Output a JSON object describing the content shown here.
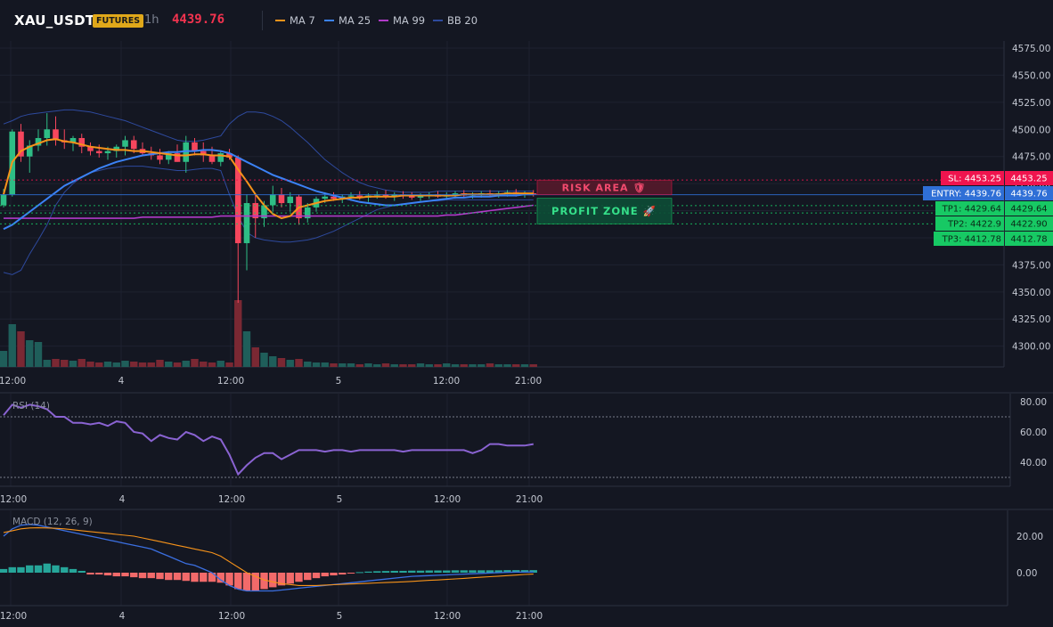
{
  "header": {
    "symbol": "XAU_USDT",
    "badge": "FUTURES",
    "interval": "1h",
    "price": "4439.76",
    "indicators": [
      {
        "label": "MA 7",
        "color": "#f7931a"
      },
      {
        "label": "MA 25",
        "color": "#3b82f6"
      },
      {
        "label": "MA 99",
        "color": "#b03ac8"
      },
      {
        "label": "BB 20",
        "color": "#2e4a9e"
      }
    ]
  },
  "zones": {
    "risk_label": "RISK AREA 🛡",
    "profit_label": "PROFIT ZONE 🚀"
  },
  "price_tags": [
    {
      "text": "SL: 4453.25",
      "value_text": "4453.25",
      "value": 4453.25,
      "kind": "sl"
    },
    {
      "text": "ENTRY: 4439.76",
      "value_text": "4439.76",
      "value": 4439.76,
      "kind": "entry"
    },
    {
      "text": "TP1: 4429.64",
      "value_text": "4429.64",
      "value": 4429.64,
      "kind": "tp"
    },
    {
      "text": "TP2: 4422.9",
      "value_text": "4422.90",
      "value": 4422.9,
      "kind": "tp"
    },
    {
      "text": "TP3: 4412.78",
      "value_text": "4412.78",
      "value": 4412.78,
      "kind": "tp"
    }
  ],
  "colors": {
    "up": "#26a69a",
    "up_candle": "#2ebd85",
    "down": "#f6465d",
    "sl": "#f0144e",
    "entry": "#2f6fd6",
    "tp": "#17c964",
    "rsi": "#8a63d2",
    "macd": "#3b6fe0",
    "signal": "#f7931a"
  },
  "chart_data": [
    {
      "type": "candlestick",
      "title": "XAU_USDT 1h",
      "x_ticks": [
        "12:00",
        "4",
        "12:00",
        "5",
        "12:00",
        "21:00"
      ],
      "y_ticks": [
        "4575.00",
        "4550.00",
        "4525.00",
        "4500.00",
        "4475.00",
        "4450.00",
        "4425.00",
        "4400.00",
        "4375.00",
        "4350.00",
        "4325.00",
        "4300.00"
      ],
      "ylim": [
        4280,
        4575
      ],
      "ohlc": [
        [
          4430,
          4445,
          4428,
          4440
        ],
        [
          4440,
          4500,
          4438,
          4498
        ],
        [
          4498,
          4505,
          4470,
          4475
        ],
        [
          4475,
          4490,
          4460,
          4485
        ],
        [
          4485,
          4500,
          4480,
          4492
        ],
        [
          4492,
          4515,
          4485,
          4500
        ],
        [
          4500,
          4512,
          4485,
          4490
        ],
        [
          4490,
          4500,
          4482,
          4488
        ],
        [
          4488,
          4494,
          4480,
          4492
        ],
        [
          4492,
          4496,
          4478,
          4484
        ],
        [
          4484,
          4488,
          4476,
          4480
        ],
        [
          4480,
          4486,
          4474,
          4478
        ],
        [
          4478,
          4484,
          4472,
          4480
        ],
        [
          4480,
          4486,
          4474,
          4484
        ],
        [
          4484,
          4494,
          4476,
          4490
        ],
        [
          4490,
          4494,
          4478,
          4482
        ],
        [
          4482,
          4488,
          4476,
          4478
        ],
        [
          4478,
          4484,
          4472,
          4476
        ],
        [
          4476,
          4482,
          4468,
          4472
        ],
        [
          4472,
          4480,
          4468,
          4478
        ],
        [
          4478,
          4486,
          4470,
          4470
        ],
        [
          4470,
          4494,
          4460,
          4488
        ],
        [
          4488,
          4492,
          4476,
          4480
        ],
        [
          4480,
          4488,
          4470,
          4476
        ],
        [
          4476,
          4484,
          4468,
          4470
        ],
        [
          4470,
          4480,
          4466,
          4478
        ],
        [
          4478,
          4482,
          4472,
          4474
        ],
        [
          4474,
          4476,
          4340,
          4395
        ],
        [
          4395,
          4440,
          4370,
          4432
        ],
        [
          4432,
          4440,
          4400,
          4418
        ],
        [
          4418,
          4434,
          4410,
          4430
        ],
        [
          4430,
          4448,
          4424,
          4440
        ],
        [
          4440,
          4446,
          4428,
          4432
        ],
        [
          4432,
          4442,
          4424,
          4438
        ],
        [
          4438,
          4440,
          4412,
          4418
        ],
        [
          4418,
          4432,
          4414,
          4428
        ],
        [
          4428,
          4438,
          4424,
          4436
        ],
        [
          4436,
          4442,
          4432,
          4438
        ],
        [
          4438,
          4442,
          4434,
          4436
        ],
        [
          4436,
          4440,
          4432,
          4438
        ],
        [
          4438,
          4442,
          4434,
          4439
        ],
        [
          4439,
          4443,
          4435,
          4437
        ],
        [
          4437,
          4441,
          4433,
          4439
        ],
        [
          4439,
          4443,
          4436,
          4440
        ],
        [
          4440,
          4444,
          4436,
          4438
        ],
        [
          4438,
          4442,
          4434,
          4440
        ],
        [
          4440,
          4443,
          4436,
          4439
        ],
        [
          4439,
          4442,
          4435,
          4437
        ],
        [
          4437,
          4441,
          4434,
          4439
        ],
        [
          4439,
          4442,
          4436,
          4440
        ],
        [
          4440,
          4443,
          4437,
          4438
        ],
        [
          4438,
          4442,
          4435,
          4439
        ],
        [
          4439,
          4443,
          4436,
          4441
        ],
        [
          4441,
          4444,
          4437,
          4439
        ],
        [
          4439,
          4442,
          4436,
          4440
        ],
        [
          4440,
          4443,
          4437,
          4441
        ],
        [
          4441,
          4444,
          4438,
          4440
        ],
        [
          4440,
          4443,
          4437,
          4441
        ],
        [
          4441,
          4444,
          4438,
          4442
        ],
        [
          4442,
          4445,
          4438,
          4440
        ],
        [
          4440,
          4443,
          4437,
          4441
        ],
        [
          4441,
          4444,
          4438,
          4440
        ]
      ],
      "volume": [
        18,
        48,
        40,
        30,
        28,
        8,
        9,
        8,
        7,
        9,
        6,
        5,
        6,
        5,
        7,
        6,
        5,
        5,
        8,
        6,
        5,
        7,
        9,
        6,
        5,
        7,
        5,
        75,
        40,
        22,
        16,
        12,
        10,
        8,
        9,
        6,
        5,
        5,
        4,
        4,
        4,
        3,
        4,
        3,
        4,
        3,
        3,
        3,
        4,
        3,
        3,
        4,
        3,
        3,
        3,
        3,
        4,
        3,
        3,
        3,
        3,
        3
      ],
      "ma7": [
        4440,
        4470,
        4480,
        4484,
        4487,
        4490,
        4491,
        4489,
        4488,
        4486,
        4484,
        4483,
        4482,
        4481,
        4481,
        4480,
        4480,
        4479,
        4478,
        4477,
        4476,
        4476,
        4477,
        4477,
        4476,
        4476,
        4475,
        4463,
        4452,
        4440,
        4430,
        4422,
        4418,
        4420,
        4428,
        4430,
        4432,
        4434,
        4435,
        4436,
        4437,
        4437,
        4438,
        4438,
        4438,
        4438,
        4439,
        4439,
        4439,
        4439,
        4439,
        4439,
        4439,
        4440,
        4440,
        4440,
        4440,
        4440,
        4441,
        4441,
        4441,
        4441
      ],
      "ma25": [
        4408,
        4412,
        4418,
        4424,
        4430,
        4436,
        4442,
        4448,
        4452,
        4456,
        4460,
        4464,
        4467,
        4470,
        4472,
        4474,
        4476,
        4477,
        4478,
        4479,
        4479,
        4480,
        4480,
        4481,
        4481,
        4480,
        4478,
        4474,
        4470,
        4466,
        4462,
        4458,
        4455,
        4452,
        4449,
        4446,
        4443,
        4441,
        4439,
        4437,
        4435,
        4433,
        4432,
        4431,
        4430,
        4430,
        4431,
        4432,
        4433,
        4434,
        4435,
        4436,
        4437,
        4437,
        4438,
        4438,
        4438,
        4439,
        4439,
        4439,
        4440,
        4440
      ],
      "ma99": [
        4418,
        4418,
        4418,
        4418,
        4418,
        4418,
        4418,
        4418,
        4418,
        4418,
        4418,
        4418,
        4418,
        4418,
        4418,
        4418,
        4419,
        4419,
        4419,
        4419,
        4419,
        4419,
        4419,
        4419,
        4419,
        4420,
        4420,
        4420,
        4420,
        4420,
        4420,
        4420,
        4420,
        4420,
        4420,
        4420,
        4420,
        4420,
        4420,
        4420,
        4420,
        4420,
        4420,
        4420,
        4420,
        4420,
        4420,
        4420,
        4420,
        4420,
        4420,
        4421,
        4421,
        4422,
        4423,
        4424,
        4425,
        4426,
        4427,
        4428,
        4429,
        4430
      ],
      "bb_upper": [
        4505,
        4508,
        4512,
        4514,
        4515,
        4516,
        4517,
        4518,
        4518,
        4517,
        4516,
        4514,
        4512,
        4510,
        4508,
        4505,
        4502,
        4499,
        4496,
        4493,
        4490,
        4489,
        4489,
        4490,
        4492,
        4494,
        4505,
        4512,
        4516,
        4516,
        4515,
        4512,
        4508,
        4502,
        4495,
        4488,
        4480,
        4472,
        4466,
        4460,
        4455,
        4451,
        4448,
        4446,
        4444,
        4443,
        4442,
        4442,
        4442,
        4442,
        4443,
        4443,
        4443,
        4443,
        4443,
        4443,
        4443,
        4443,
        4443,
        4443,
        4443,
        4443
      ],
      "bb_lower": [
        4368,
        4366,
        4370,
        4385,
        4398,
        4412,
        4430,
        4442,
        4450,
        4456,
        4460,
        4462,
        4464,
        4465,
        4466,
        4466,
        4466,
        4465,
        4464,
        4463,
        4462,
        4462,
        4463,
        4464,
        4464,
        4462,
        4440,
        4420,
        4405,
        4400,
        4398,
        4397,
        4396,
        4396,
        4397,
        4398,
        4400,
        4403,
        4406,
        4410,
        4414,
        4418,
        4422,
        4426,
        4428,
        4430,
        4431,
        4432,
        4433,
        4434,
        4434,
        4435,
        4435,
        4435,
        4435,
        4435,
        4435,
        4435,
        4435,
        4435,
        4435,
        4435
      ]
    },
    {
      "type": "line",
      "title": "RSI (14)",
      "x_ticks": [
        "12:00",
        "4",
        "12:00",
        "5",
        "12:00",
        "21:00"
      ],
      "y_ticks": [
        "80.00",
        "60.00",
        "40.00"
      ],
      "ylim": [
        25,
        85
      ],
      "levels": [
        70,
        30
      ],
      "values": [
        71,
        78,
        76,
        78,
        77,
        75,
        70,
        70,
        66,
        66,
        65,
        66,
        64,
        67,
        66,
        60,
        59,
        54,
        58,
        56,
        55,
        60,
        58,
        54,
        57,
        55,
        45,
        32,
        38,
        43,
        46,
        46,
        42,
        45,
        48,
        48,
        48,
        47,
        48,
        48,
        47,
        48,
        48,
        48,
        48,
        48,
        47,
        48,
        48,
        48,
        48,
        48,
        48,
        48,
        46,
        48,
        52,
        52,
        51,
        51,
        51,
        52
      ]
    },
    {
      "type": "bar",
      "title": "MACD (12, 26, 9)",
      "x_ticks": [
        "12:00",
        "4",
        "12:00",
        "5",
        "12:00",
        "21:00"
      ],
      "y_ticks": [
        "20.00",
        "0.00"
      ],
      "ylim": [
        -15,
        30
      ],
      "histogram": [
        2,
        3,
        3,
        4,
        4,
        5,
        4,
        3,
        2,
        1,
        -1,
        -1,
        -1.5,
        -2,
        -2,
        -2.5,
        -3,
        -3,
        -3.5,
        -4,
        -4,
        -4.5,
        -5,
        -5,
        -5,
        -5.5,
        -7,
        -9,
        -10,
        -10,
        -9,
        -8,
        -7,
        -6,
        -5,
        -4,
        -3,
        -2,
        -1.5,
        -1,
        -0.5,
        0.3,
        0.6,
        0.8,
        0.9,
        1,
        1,
        1.1,
        1.1,
        1.2,
        1.2,
        1.2,
        1.3,
        1.3,
        1.3,
        1.3,
        1.3,
        1.3,
        1.4,
        1.4,
        1.4,
        1.4
      ],
      "macd": [
        20,
        24,
        26,
        26.5,
        26,
        25,
        24,
        23,
        22,
        21,
        20,
        19,
        18,
        17,
        16,
        15,
        14,
        13,
        11,
        9,
        7,
        5,
        4,
        2,
        0,
        -4,
        -7,
        -9,
        -10,
        -10,
        -10,
        -10,
        -9.5,
        -9,
        -8.5,
        -8,
        -7.5,
        -7,
        -6.5,
        -6,
        -5.5,
        -5,
        -4.5,
        -4,
        -3.5,
        -3,
        -2.5,
        -2,
        -1.8,
        -1.6,
        -1.4,
        -1.2,
        -1,
        -0.8,
        -0.6,
        -0.4,
        -0.2,
        0,
        0.2,
        0.3,
        0.3,
        0.4
      ],
      "signal": [
        22,
        23,
        24,
        24.5,
        24.6,
        24.5,
        24.3,
        24,
        23.5,
        23,
        22.5,
        22,
        21.5,
        21,
        20.5,
        20,
        19,
        18,
        17,
        16,
        15,
        14,
        13,
        12,
        11,
        9,
        6,
        3,
        0,
        -2,
        -4,
        -5,
        -6,
        -6.5,
        -7,
        -7,
        -7,
        -6.8,
        -6.6,
        -6.4,
        -6.2,
        -6,
        -5.8,
        -5.6,
        -5.4,
        -5.2,
        -5,
        -4.8,
        -4.5,
        -4.2,
        -4,
        -3.7,
        -3.4,
        -3.1,
        -2.8,
        -2.5,
        -2.2,
        -1.9,
        -1.6,
        -1.3,
        -1,
        -0.8
      ]
    }
  ]
}
